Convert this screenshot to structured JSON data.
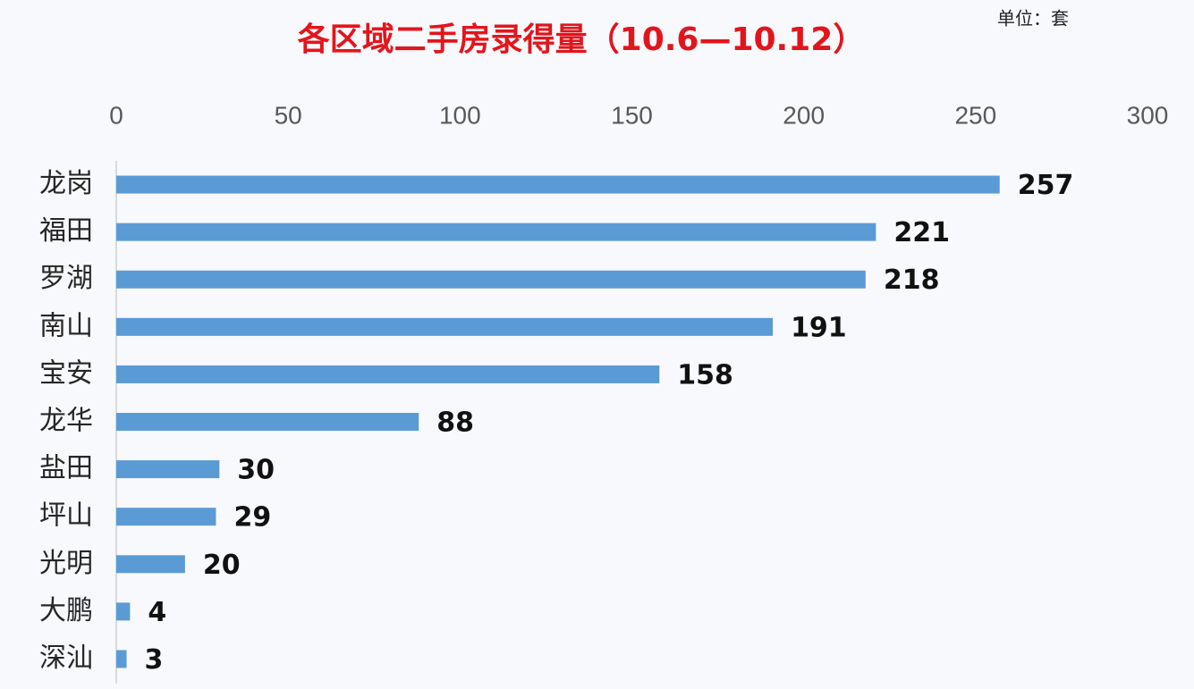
{
  "chart_data": {
    "type": "bar",
    "title": "各区域二手房录得量（10.6—10.12）",
    "unit": "单位：套",
    "categories": [
      "龙岗",
      "福田",
      "罗湖",
      "南山",
      "宝安",
      "龙华",
      "盐田",
      "坪山",
      "光明",
      "大鹏",
      "深汕"
    ],
    "values": [
      257,
      221,
      218,
      191,
      158,
      88,
      30,
      29,
      20,
      4,
      3
    ],
    "color": "#5b9bd5",
    "xlim": [
      0,
      300
    ],
    "xticks": [
      0,
      50,
      100,
      150,
      200,
      250,
      300
    ]
  }
}
